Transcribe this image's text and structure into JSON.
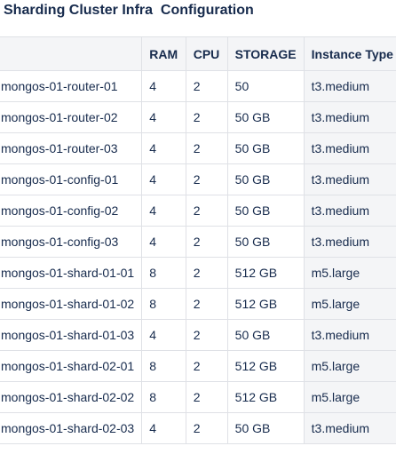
{
  "page": {
    "title": "Sharding Cluster Infra  Configuration"
  },
  "table": {
    "headers": [
      "",
      "RAM",
      "CPU",
      "STORAGE",
      "Instance Type"
    ],
    "rows": [
      {
        "host": "mongos-01-router-01",
        "ram": "4",
        "cpu": "2",
        "storage": "50",
        "instance": "t3.medium"
      },
      {
        "host": "mongos-01-router-02",
        "ram": "4",
        "cpu": "2",
        "storage": "50 GB",
        "instance": "t3.medium"
      },
      {
        "host": "mongos-01-router-03",
        "ram": "4",
        "cpu": "2",
        "storage": "50 GB",
        "instance": "t3.medium"
      },
      {
        "host": "mongos-01-config-01",
        "ram": "4",
        "cpu": "2",
        "storage": "50 GB",
        "instance": "t3.medium"
      },
      {
        "host": "mongos-01-config-02",
        "ram": "4",
        "cpu": "2",
        "storage": "50 GB",
        "instance": "t3.medium"
      },
      {
        "host": "mongos-01-config-03",
        "ram": "4",
        "cpu": "2",
        "storage": "50 GB",
        "instance": "t3.medium"
      },
      {
        "host": "mongos-01-shard-01-01",
        "ram": "8",
        "cpu": "2",
        "storage": "512 GB",
        "instance": "m5.large"
      },
      {
        "host": "mongos-01-shard-01-02",
        "ram": "8",
        "cpu": "2",
        "storage": "512 GB",
        "instance": "m5.large"
      },
      {
        "host": "mongos-01-shard-01-03",
        "ram": "4",
        "cpu": "2",
        "storage": "50 GB",
        "instance": "t3.medium"
      },
      {
        "host": "mongos-01-shard-02-01",
        "ram": "8",
        "cpu": "2",
        "storage": "512 GB",
        "instance": "m5.large"
      },
      {
        "host": "mongos-01-shard-02-02",
        "ram": "8",
        "cpu": "2",
        "storage": "512 GB",
        "instance": "m5.large"
      },
      {
        "host": "mongos-01-shard-02-03",
        "ram": "4",
        "cpu": "2",
        "storage": "50 GB",
        "instance": "t3.medium"
      }
    ]
  },
  "colors": {
    "text": "#172b4d",
    "border": "#dfe1e6",
    "header_bg": "#f4f5f7"
  }
}
